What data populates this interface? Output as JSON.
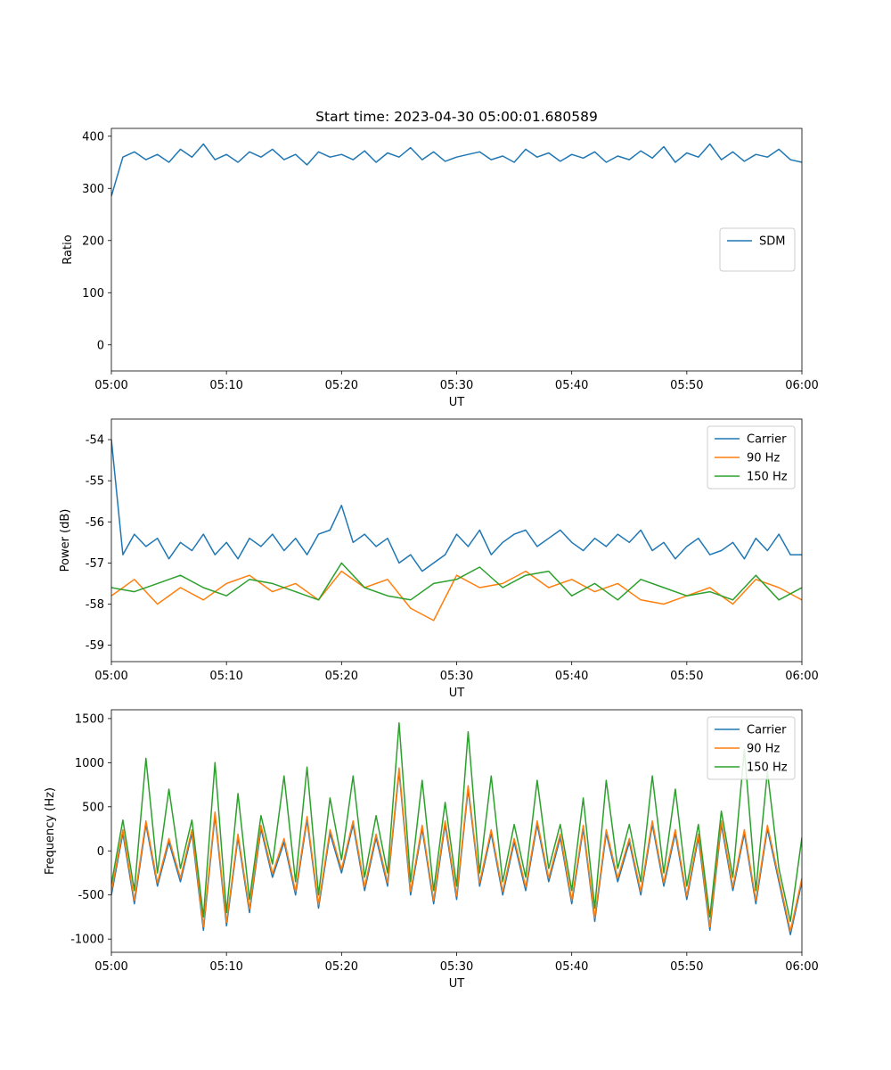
{
  "chart_data": [
    {
      "type": "line",
      "title": "Start time: 2023-04-30 05:00:01.680589",
      "xlabel": "UT",
      "ylabel": "Ratio",
      "xlim": [
        "05:00",
        "06:00"
      ],
      "ylim": [
        -50,
        415
      ],
      "xticks": [
        "05:00",
        "05:10",
        "05:20",
        "05:30",
        "05:40",
        "05:50",
        "06:00"
      ],
      "yticks": [
        0,
        100,
        200,
        300,
        400
      ],
      "legend_position": "center-right",
      "grid": false,
      "series": [
        {
          "name": "SDM",
          "color": "#1f77b4",
          "x": [
            "05:00",
            "05:01",
            "05:02",
            "05:03",
            "05:04",
            "05:05",
            "05:06",
            "05:07",
            "05:08",
            "05:09",
            "05:10",
            "05:11",
            "05:12",
            "05:13",
            "05:14",
            "05:15",
            "05:16",
            "05:17",
            "05:18",
            "05:19",
            "05:20",
            "05:21",
            "05:22",
            "05:23",
            "05:24",
            "05:25",
            "05:26",
            "05:27",
            "05:28",
            "05:29",
            "05:30",
            "05:31",
            "05:32",
            "05:33",
            "05:34",
            "05:35",
            "05:36",
            "05:37",
            "05:38",
            "05:39",
            "05:40",
            "05:41",
            "05:42",
            "05:43",
            "05:44",
            "05:45",
            "05:46",
            "05:47",
            "05:48",
            "05:49",
            "05:50",
            "05:51",
            "05:52",
            "05:53",
            "05:54",
            "05:55",
            "05:56",
            "05:57",
            "05:58",
            "05:59",
            "06:00"
          ],
          "y": [
            285,
            360,
            370,
            355,
            365,
            350,
            375,
            360,
            385,
            355,
            365,
            350,
            370,
            360,
            375,
            355,
            365,
            345,
            370,
            360,
            365,
            355,
            372,
            350,
            368,
            360,
            378,
            355,
            370,
            352,
            360,
            365,
            370,
            355,
            362,
            350,
            375,
            360,
            368,
            352,
            365,
            358,
            370,
            350,
            362,
            355,
            372,
            358,
            380,
            350,
            368,
            360,
            385,
            355,
            370,
            352,
            365,
            360,
            375,
            355,
            350
          ]
        }
      ]
    },
    {
      "type": "line",
      "title": "",
      "xlabel": "UT",
      "ylabel": "Power (dB)",
      "xlim": [
        "05:00",
        "06:00"
      ],
      "ylim": [
        -59.4,
        -53.5
      ],
      "xticks": [
        "05:00",
        "05:10",
        "05:20",
        "05:30",
        "05:40",
        "05:50",
        "06:00"
      ],
      "yticks": [
        -59,
        -58,
        -57,
        -56,
        -55,
        -54
      ],
      "legend_position": "upper-right",
      "grid": false,
      "series": [
        {
          "name": "Carrier",
          "color": "#1f77b4",
          "x": [
            "05:00",
            "05:01",
            "05:02",
            "05:03",
            "05:04",
            "05:05",
            "05:06",
            "05:07",
            "05:08",
            "05:09",
            "05:10",
            "05:11",
            "05:12",
            "05:13",
            "05:14",
            "05:15",
            "05:16",
            "05:17",
            "05:18",
            "05:19",
            "05:20",
            "05:21",
            "05:22",
            "05:23",
            "05:24",
            "05:25",
            "05:26",
            "05:27",
            "05:28",
            "05:29",
            "05:30",
            "05:31",
            "05:32",
            "05:33",
            "05:34",
            "05:35",
            "05:36",
            "05:37",
            "05:38",
            "05:39",
            "05:40",
            "05:41",
            "05:42",
            "05:43",
            "05:44",
            "05:45",
            "05:46",
            "05:47",
            "05:48",
            "05:49",
            "05:50",
            "05:51",
            "05:52",
            "05:53",
            "05:54",
            "05:55",
            "05:56",
            "05:57",
            "05:58",
            "05:59",
            "06:00"
          ],
          "y": [
            -54.0,
            -56.8,
            -56.3,
            -56.6,
            -56.4,
            -56.9,
            -56.5,
            -56.7,
            -56.3,
            -56.8,
            -56.5,
            -56.9,
            -56.4,
            -56.6,
            -56.3,
            -56.7,
            -56.4,
            -56.8,
            -56.3,
            -56.2,
            -55.6,
            -56.5,
            -56.3,
            -56.6,
            -56.4,
            -57.0,
            -56.8,
            -57.2,
            -57.0,
            -56.8,
            -56.3,
            -56.6,
            -56.2,
            -56.8,
            -56.5,
            -56.3,
            -56.2,
            -56.6,
            -56.4,
            -56.2,
            -56.5,
            -56.7,
            -56.4,
            -56.6,
            -56.3,
            -56.5,
            -56.2,
            -56.7,
            -56.5,
            -56.9,
            -56.6,
            -56.4,
            -56.8,
            -56.7,
            -56.5,
            -56.9,
            -56.4,
            -56.7,
            -56.3,
            -56.8,
            -56.8
          ]
        },
        {
          "name": "90 Hz",
          "color": "#ff7f0e",
          "x": [
            "05:00",
            "05:02",
            "05:04",
            "05:06",
            "05:08",
            "05:10",
            "05:12",
            "05:14",
            "05:16",
            "05:18",
            "05:20",
            "05:22",
            "05:24",
            "05:26",
            "05:28",
            "05:30",
            "05:32",
            "05:34",
            "05:36",
            "05:38",
            "05:40",
            "05:42",
            "05:44",
            "05:46",
            "05:48",
            "05:50",
            "05:52",
            "05:54",
            "05:56",
            "05:58",
            "06:00"
          ],
          "y": [
            -57.8,
            -57.4,
            -58.0,
            -57.6,
            -57.9,
            -57.5,
            -57.3,
            -57.7,
            -57.5,
            -57.9,
            -57.2,
            -57.6,
            -57.4,
            -58.1,
            -58.4,
            -57.3,
            -57.6,
            -57.5,
            -57.2,
            -57.6,
            -57.4,
            -57.7,
            -57.5,
            -57.9,
            -58.0,
            -57.8,
            -57.6,
            -58.0,
            -57.4,
            -57.6,
            -57.9
          ]
        },
        {
          "name": "150 Hz",
          "color": "#2ca02c",
          "x": [
            "05:00",
            "05:02",
            "05:04",
            "05:06",
            "05:08",
            "05:10",
            "05:12",
            "05:14",
            "05:16",
            "05:18",
            "05:20",
            "05:22",
            "05:24",
            "05:26",
            "05:28",
            "05:30",
            "05:32",
            "05:34",
            "05:36",
            "05:38",
            "05:40",
            "05:42",
            "05:44",
            "05:46",
            "05:48",
            "05:50",
            "05:52",
            "05:54",
            "05:56",
            "05:58",
            "06:00"
          ],
          "y": [
            -57.6,
            -57.7,
            -57.5,
            -57.3,
            -57.6,
            -57.8,
            -57.4,
            -57.5,
            -57.7,
            -57.9,
            -57.0,
            -57.6,
            -57.8,
            -57.9,
            -57.5,
            -57.4,
            -57.1,
            -57.6,
            -57.3,
            -57.2,
            -57.8,
            -57.5,
            -57.9,
            -57.4,
            -57.6,
            -57.8,
            -57.7,
            -57.9,
            -57.3,
            -57.9,
            -57.6
          ]
        }
      ]
    },
    {
      "type": "line",
      "title": "",
      "xlabel": "UT",
      "ylabel": "Frequency (Hz)",
      "xlim": [
        "05:00",
        "06:00"
      ],
      "ylim": [
        -1150,
        1600
      ],
      "xticks": [
        "05:00",
        "05:10",
        "05:20",
        "05:30",
        "05:40",
        "05:50",
        "06:00"
      ],
      "yticks": [
        -1000,
        -500,
        0,
        500,
        1000,
        1500
      ],
      "legend_position": "upper-right",
      "grid": false,
      "series": [
        {
          "name": "Carrier",
          "color": "#1f77b4",
          "x": [
            "05:00",
            "05:01",
            "05:02",
            "05:03",
            "05:04",
            "05:05",
            "05:06",
            "05:07",
            "05:08",
            "05:09",
            "05:10",
            "05:11",
            "05:12",
            "05:13",
            "05:14",
            "05:15",
            "05:16",
            "05:17",
            "05:18",
            "05:19",
            "05:20",
            "05:21",
            "05:22",
            "05:23",
            "05:24",
            "05:25",
            "05:26",
            "05:27",
            "05:28",
            "05:29",
            "05:30",
            "05:31",
            "05:32",
            "05:33",
            "05:34",
            "05:35",
            "05:36",
            "05:37",
            "05:38",
            "05:39",
            "05:40",
            "05:41",
            "05:42",
            "05:43",
            "05:44",
            "05:45",
            "05:46",
            "05:47",
            "05:48",
            "05:49",
            "05:50",
            "05:51",
            "05:52",
            "05:53",
            "05:54",
            "05:55",
            "05:56",
            "05:57",
            "05:58",
            "05:59",
            "06:00"
          ],
          "y": [
            -500,
            200,
            -600,
            300,
            -400,
            100,
            -350,
            200,
            -900,
            400,
            -850,
            150,
            -700,
            250,
            -300,
            100,
            -500,
            350,
            -650,
            200,
            -250,
            300,
            -450,
            150,
            -400,
            900,
            -500,
            250,
            -600,
            300,
            -550,
            700,
            -400,
            200,
            -500,
            100,
            -450,
            300,
            -350,
            150,
            -600,
            250,
            -800,
            200,
            -350,
            100,
            -500,
            300,
            -400,
            200,
            -550,
            150,
            -900,
            300,
            -450,
            200,
            -600,
            250,
            -350,
            -950,
            -350
          ]
        },
        {
          "name": "90 Hz",
          "color": "#ff7f0e",
          "x": [
            "05:00",
            "05:01",
            "05:02",
            "05:03",
            "05:04",
            "05:05",
            "05:06",
            "05:07",
            "05:08",
            "05:09",
            "05:10",
            "05:11",
            "05:12",
            "05:13",
            "05:14",
            "05:15",
            "05:16",
            "05:17",
            "05:18",
            "05:19",
            "05:20",
            "05:21",
            "05:22",
            "05:23",
            "05:24",
            "05:25",
            "05:26",
            "05:27",
            "05:28",
            "05:29",
            "05:30",
            "05:31",
            "05:32",
            "05:33",
            "05:34",
            "05:35",
            "05:36",
            "05:37",
            "05:38",
            "05:39",
            "05:40",
            "05:41",
            "05:42",
            "05:43",
            "05:44",
            "05:45",
            "05:46",
            "05:47",
            "05:48",
            "05:49",
            "05:50",
            "05:51",
            "05:52",
            "05:53",
            "05:54",
            "05:55",
            "05:56",
            "05:57",
            "05:58",
            "05:59",
            "06:00"
          ],
          "y": [
            -460,
            240,
            -560,
            340,
            -360,
            140,
            -310,
            240,
            -860,
            440,
            -810,
            190,
            -660,
            290,
            -260,
            140,
            -460,
            390,
            -610,
            240,
            -210,
            340,
            -410,
            190,
            -360,
            940,
            -460,
            290,
            -560,
            340,
            -510,
            740,
            -360,
            240,
            -460,
            140,
            -410,
            340,
            -310,
            190,
            -560,
            290,
            -760,
            240,
            -310,
            140,
            -460,
            340,
            -360,
            240,
            -510,
            190,
            -860,
            340,
            -410,
            240,
            -560,
            290,
            -310,
            -910,
            -310
          ]
        },
        {
          "name": "150 Hz",
          "color": "#2ca02c",
          "x": [
            "05:00",
            "05:01",
            "05:02",
            "05:03",
            "05:04",
            "05:05",
            "05:06",
            "05:07",
            "05:08",
            "05:09",
            "05:10",
            "05:11",
            "05:12",
            "05:13",
            "05:14",
            "05:15",
            "05:16",
            "05:17",
            "05:18",
            "05:19",
            "05:20",
            "05:21",
            "05:22",
            "05:23",
            "05:24",
            "05:25",
            "05:26",
            "05:27",
            "05:28",
            "05:29",
            "05:30",
            "05:31",
            "05:32",
            "05:33",
            "05:34",
            "05:35",
            "05:36",
            "05:37",
            "05:38",
            "05:39",
            "05:40",
            "05:41",
            "05:42",
            "05:43",
            "05:44",
            "05:45",
            "05:46",
            "05:47",
            "05:48",
            "05:49",
            "05:50",
            "05:51",
            "05:52",
            "05:53",
            "05:54",
            "05:55",
            "05:56",
            "05:57",
            "05:58",
            "05:59",
            "06:00"
          ],
          "y": [
            -380,
            350,
            -450,
            1050,
            -250,
            700,
            -200,
            350,
            -750,
            1000,
            -700,
            650,
            -550,
            400,
            -150,
            850,
            -350,
            950,
            -500,
            600,
            -100,
            850,
            -300,
            400,
            -250,
            1450,
            -350,
            800,
            -450,
            550,
            -400,
            1350,
            -250,
            850,
            -350,
            300,
            -300,
            800,
            -200,
            300,
            -450,
            600,
            -650,
            800,
            -200,
            300,
            -350,
            850,
            -250,
            700,
            -400,
            300,
            -750,
            450,
            -300,
            1150,
            -450,
            900,
            -200,
            -800,
            150
          ]
        }
      ]
    }
  ]
}
